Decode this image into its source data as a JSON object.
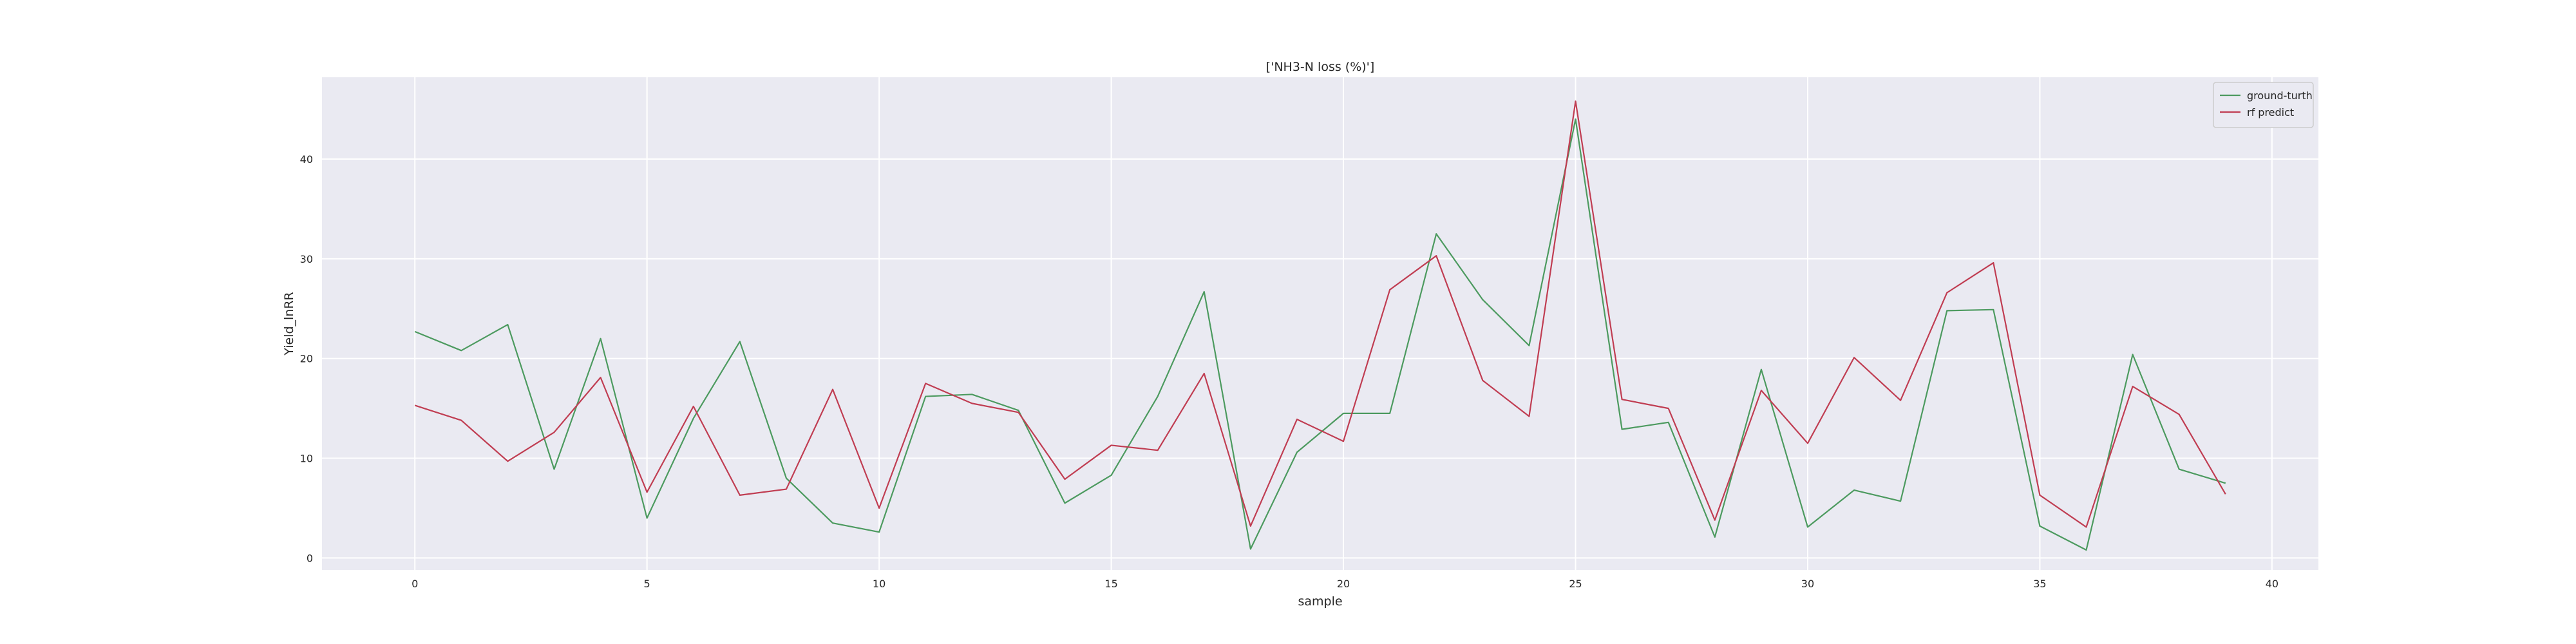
{
  "chart_data": {
    "type": "line",
    "title": "['NH3-N loss (%)']",
    "xlabel": "sample",
    "ylabel": "Yield_lnRR",
    "xlim": [
      -2,
      41
    ],
    "ylim": [
      -1.2,
      48.2
    ],
    "xticks": [
      0,
      5,
      10,
      15,
      20,
      25,
      30,
      35,
      40
    ],
    "yticks": [
      0,
      10,
      20,
      30,
      40
    ],
    "grid": true,
    "legend_placement": "top-right",
    "x": [
      0,
      1,
      2,
      3,
      4,
      5,
      6,
      7,
      8,
      9,
      10,
      11,
      12,
      13,
      14,
      15,
      16,
      17,
      18,
      19,
      20,
      21,
      22,
      23,
      24,
      25,
      26,
      27,
      28,
      29,
      30,
      31,
      32,
      33,
      34,
      35,
      36,
      37,
      38,
      39
    ],
    "series": [
      {
        "name": "ground-turth",
        "color": "#4c9a5f",
        "values": [
          22.7,
          20.8,
          23.4,
          8.9,
          22.0,
          4.0,
          14.0,
          21.7,
          8.0,
          3.5,
          2.6,
          16.2,
          16.4,
          14.8,
          5.5,
          8.3,
          16.2,
          26.7,
          0.9,
          10.6,
          14.5,
          14.5,
          32.5,
          25.9,
          21.3,
          44.0,
          12.9,
          13.6,
          2.1,
          18.9,
          3.1,
          6.8,
          5.7,
          24.8,
          24.9,
          3.2,
          0.8,
          20.4,
          8.9,
          7.5
        ]
      },
      {
        "name": "rf predict",
        "color": "#c03d52",
        "values": [
          15.3,
          13.8,
          9.7,
          12.6,
          18.1,
          6.6,
          15.2,
          6.3,
          6.9,
          16.9,
          5.0,
          17.5,
          15.5,
          14.6,
          7.9,
          11.3,
          10.8,
          18.5,
          3.2,
          13.9,
          11.7,
          26.9,
          30.3,
          17.8,
          14.2,
          45.8,
          15.9,
          15.0,
          3.8,
          16.8,
          11.5,
          20.1,
          15.8,
          26.6,
          29.6,
          6.3,
          3.1,
          17.2,
          14.4,
          6.4
        ]
      }
    ]
  }
}
